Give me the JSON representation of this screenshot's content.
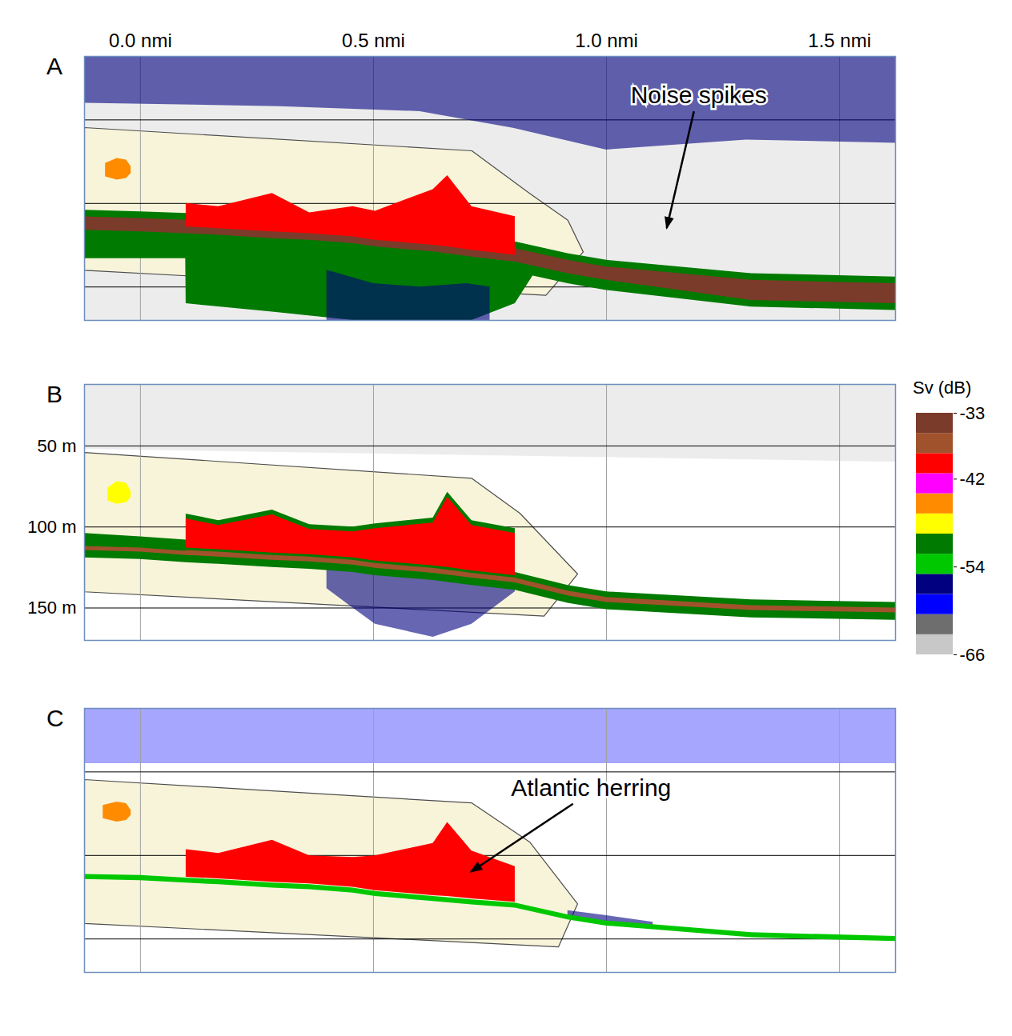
{
  "chart_data": {
    "type": "heatmap",
    "xlim": [
      -0.12,
      1.62
    ],
    "xticks": [
      {
        "value": 0,
        "label": "0.0 nmi"
      },
      {
        "value": 0.5,
        "label": "0.5 nmi"
      },
      {
        "value": 1,
        "label": "1.0 nmi"
      },
      {
        "value": 1.5,
        "label": "1.5 nmi"
      }
    ],
    "ylim": [
      12,
      170
    ],
    "yticks": [
      {
        "value": 50,
        "label": "50 m"
      },
      {
        "value": 100,
        "label": "100 m"
      },
      {
        "value": 150,
        "label": "150 m"
      }
    ],
    "grid": true,
    "colorbar": {
      "title": "Sv (dB)",
      "range": [
        -66,
        -33
      ],
      "ticks": [
        -33,
        -42,
        -54,
        -66
      ],
      "colors": [
        "#c8c8c8",
        "#6e6e6e",
        "#0000ff",
        "#000080",
        "#00c800",
        "#007a00",
        "#ffff00",
        "#ff8c00",
        "#ff00ff",
        "#ff0000",
        "#a0522d",
        "#7b3b2a"
      ]
    },
    "panels": [
      {
        "label": "A",
        "tick_labels": "x",
        "annotation": {
          "text": "Noise spikes",
          "x": 1.13,
          "depth": 115
        },
        "region": {
          "x": [
            -0.12,
            0.711,
            0.835,
            0.917,
            0.95,
            0.87,
            -0.12,
            -0.12
          ],
          "depth": [
            54.6,
            68.5,
            94,
            110,
            129,
            155,
            140,
            54.6
          ]
        },
        "layers": [
          {
            "x": [
              -0.12,
              1.62
            ],
            "top": [
              12,
              12
            ],
            "bottom": [
              170,
              170
            ],
            "sv": -64
          },
          {
            "x": [
              -0.12,
              0.3,
              0.6,
              0.8,
              1.0,
              1.3,
              1.62
            ],
            "top": [
              12,
              12,
              12,
              12,
              12,
              12,
              12
            ],
            "bottom": [
              40,
              42,
              45,
              55,
              68,
              62,
              64
            ],
            "sv": -57
          },
          {
            "x": [
              -0.12,
              0.097,
              0.098,
              0.283,
              0.456,
              0.628,
              0.711,
              0.804,
              0.85
            ],
            "top": [
              118,
              119,
              119,
              121,
              124,
              129,
              132,
              135,
              137
            ],
            "bottom": [
              133,
              133,
              160,
              165,
              170,
              170,
              170,
              160,
              140
            ],
            "sv": -51
          },
          {
            "x": [
              0.4,
              0.5,
              0.6,
              0.7,
              0.75
            ],
            "top": [
              140,
              148,
              150,
              148,
              150
            ],
            "bottom": [
              170,
              170,
              170,
              170,
              170
            ],
            "sv": -57
          },
          {
            "x": [
              -0.12,
              0,
              0.098,
              0.168,
              0.283,
              0.363,
              0.456,
              0.504,
              0.628,
              0.711,
              0.804,
              0.917,
              1.0,
              1.311,
              1.62
            ],
            "top": [
              104,
              105,
              106,
              107,
              109,
              110,
              112,
              114,
              117,
              120,
              123,
              130,
              134,
              142,
              144
            ],
            "bottom": [
              122,
              123,
              124,
              125,
              127,
              128,
              130,
              132,
              135,
              138,
              141,
              148,
              152,
              162,
              164
            ],
            "sv": -51
          },
          {
            "x": [
              -0.12,
              0,
              0.098,
              0.168,
              0.283,
              0.363,
              0.456,
              0.504,
              0.628,
              0.711,
              0.804,
              0.917,
              1.0,
              1.311,
              1.62
            ],
            "top": [
              108,
              109,
              110,
              111,
              113,
              114,
              116,
              118,
              121,
              124,
              127,
              134,
              138,
              146,
              148
            ],
            "bottom": [
              116,
              117,
              118,
              119,
              121,
              122,
              124,
              126,
              129,
              132,
              135,
              142,
              146,
              158,
              160
            ],
            "sv": -34
          },
          {
            "x": [
              0.098,
              0.168,
              0.283,
              0.363,
              0.456,
              0.504,
              0.628,
              0.659,
              0.711,
              0.804
            ],
            "top": [
              100,
              101.9,
              94,
              105.6,
              101.9,
              104.6,
              91.7,
              83.3,
              101.9,
              107.9
            ],
            "bottom": [
              114,
              115,
              117,
              118,
              120,
              122,
              125,
              126,
              128,
              131
            ],
            "sv": -39
          },
          {
            "x": [
              -0.075,
              -0.05,
              -0.03,
              -0.02
            ],
            "top": [
              76,
              73,
              74,
              78
            ],
            "bottom": [
              84,
              86,
              85,
              82
            ],
            "sv": -45
          }
        ]
      },
      {
        "label": "B",
        "tick_labels": "y",
        "region": {
          "x": [
            -0.12,
            0.711,
            0.814,
            0.938,
            0.866,
            -0.12,
            -0.12
          ],
          "depth": [
            54,
            70,
            91.5,
            129,
            155,
            140,
            54
          ]
        },
        "layers": [
          {
            "x": [
              -0.12,
              1.62
            ],
            "top": [
              12,
              12
            ],
            "bottom": [
              52,
              60
            ],
            "sv": -64
          },
          {
            "x": [
              0.4,
              0.456,
              0.504,
              0.628,
              0.711,
              0.804
            ],
            "top": [
              121,
              122,
              124,
              127,
              130,
              133
            ],
            "bottom": [
              138,
              150,
              160,
              168,
              160,
              140
            ],
            "sv": -57
          },
          {
            "x": [
              -0.12,
              0,
              0.098,
              0.168,
              0.283,
              0.363,
              0.456,
              0.504,
              0.628,
              0.711,
              0.804,
              0.917,
              1.0,
              1.311,
              1.62
            ],
            "top": [
              108,
              109,
              111,
              112,
              114,
              115,
              117,
              119,
              122,
              125,
              128,
              136,
              140,
              145,
              146.5
            ],
            "bottom": [
              119,
              120,
              122,
              123,
              125,
              126,
              128,
              130,
              133,
              136,
              139,
              147,
              151,
              156,
              157.5
            ],
            "sv": -51
          },
          {
            "x": [
              -0.12,
              0,
              0.098,
              0.168,
              0.283,
              0.363,
              0.456,
              0.504,
              0.628,
              0.711,
              0.804,
              0.917,
              1.0,
              1.311,
              1.62
            ],
            "top": [
              111.5,
              112.5,
              114.5,
              115.5,
              117.5,
              118.5,
              120.5,
              122.5,
              125.5,
              128.5,
              131.5,
              139.5,
              143.5,
              148.5,
              150
            ],
            "bottom": [
              114.5,
              115.5,
              117.5,
              118.5,
              120.5,
              121.5,
              123.5,
              125.5,
              128.5,
              131.5,
              134.5,
              142.5,
              146.5,
              151.5,
              153
            ],
            "sv": -36
          },
          {
            "x": [
              -0.12,
              0,
              0.098
            ],
            "top": [
              104,
              106,
              108
            ],
            "bottom": [
              112,
              113,
              115
            ],
            "sv": -51
          },
          {
            "x": [
              0.098,
              0.168,
              0.283,
              0.363,
              0.456,
              0.504,
              0.628,
              0.659,
              0.711,
              0.804
            ],
            "top": [
              92,
              96,
              89.5,
              98.5,
              100,
              98,
              94.5,
              78.5,
              96,
              101
            ],
            "bottom": [
              113,
              114,
              116,
              117,
              119,
              121,
              124,
              125,
              127,
              130
            ],
            "sv": -51
          },
          {
            "x": [
              0.098,
              0.168,
              0.283,
              0.363,
              0.456,
              0.504,
              0.628,
              0.659,
              0.711,
              0.804
            ],
            "top": [
              95,
              99,
              92.5,
              101.5,
              103,
              101,
              97.5,
              81.5,
              99,
              104
            ],
            "bottom": [
              113,
              114,
              116,
              117,
              119,
              121,
              124,
              125,
              127,
              130
            ],
            "sv": -39
          },
          {
            "x": [
              -0.07,
              -0.05,
              -0.03,
              -0.02
            ],
            "top": [
              76,
              72,
              73,
              78
            ],
            "bottom": [
              84,
              86,
              85,
              82
            ],
            "sv": -48
          }
        ]
      },
      {
        "label": "C",
        "tick_labels": false,
        "annotation": {
          "text": "Atlantic herring",
          "x": 0.71,
          "depth": 110
        },
        "region": {
          "x": [
            -0.12,
            0.711,
            0.835,
            0.938,
            0.897,
            -0.12,
            -0.12
          ],
          "depth": [
            54.6,
            68.6,
            91.9,
            129,
            154.7,
            140.7,
            54.6
          ]
        },
        "layers": [
          {
            "x": [
              -0.12,
              1.62
            ],
            "top": [
              12,
              12
            ],
            "bottom": [
              45,
              45
            ],
            "sv": -60
          },
          {
            "x": [
              0.917,
              1.0,
              1.1
            ],
            "top": [
              133,
              136,
              140
            ],
            "bottom": [
              137,
              140,
              143
            ],
            "sv": -57
          },
          {
            "x": [
              -0.12,
              0,
              0.098,
              0.168,
              0.283,
              0.363,
              0.456,
              0.504,
              0.628,
              0.711,
              0.804,
              0.917,
              1.0,
              1.311,
              1.62
            ],
            "top": [
              111.3,
              112,
              113.5,
              114.5,
              116.5,
              117.5,
              119.5,
              121.5,
              124.5,
              126.5,
              128.5,
              135.5,
              139.2,
              146.2,
              148.5
            ],
            "bottom": [
              114.3,
              115,
              116.5,
              117.5,
              119.5,
              120.5,
              122.5,
              124.5,
              127.5,
              129.5,
              131.5,
              138.5,
              142.2,
              149.2,
              151.5
            ],
            "sv": -53
          },
          {
            "x": [
              0.098,
              0.168,
              0.283,
              0.363,
              0.456,
              0.504,
              0.628,
              0.659,
              0.711,
              0.804
            ],
            "top": [
              96.5,
              98.8,
              90.9,
              100.2,
              101.2,
              100.2,
              92.8,
              80.2,
              97.4,
              106.7
            ],
            "bottom": [
              113,
              114,
              116,
              117,
              119,
              121,
              124,
              124.5,
              126,
              128
            ],
            "sv": -39
          },
          {
            "x": [
              -0.08,
              -0.05,
              -0.03,
              -0.02
            ],
            "top": [
              70,
              68,
              69,
              73
            ],
            "bottom": [
              78,
              80,
              79,
              76
            ],
            "sv": -45
          }
        ]
      }
    ]
  }
}
